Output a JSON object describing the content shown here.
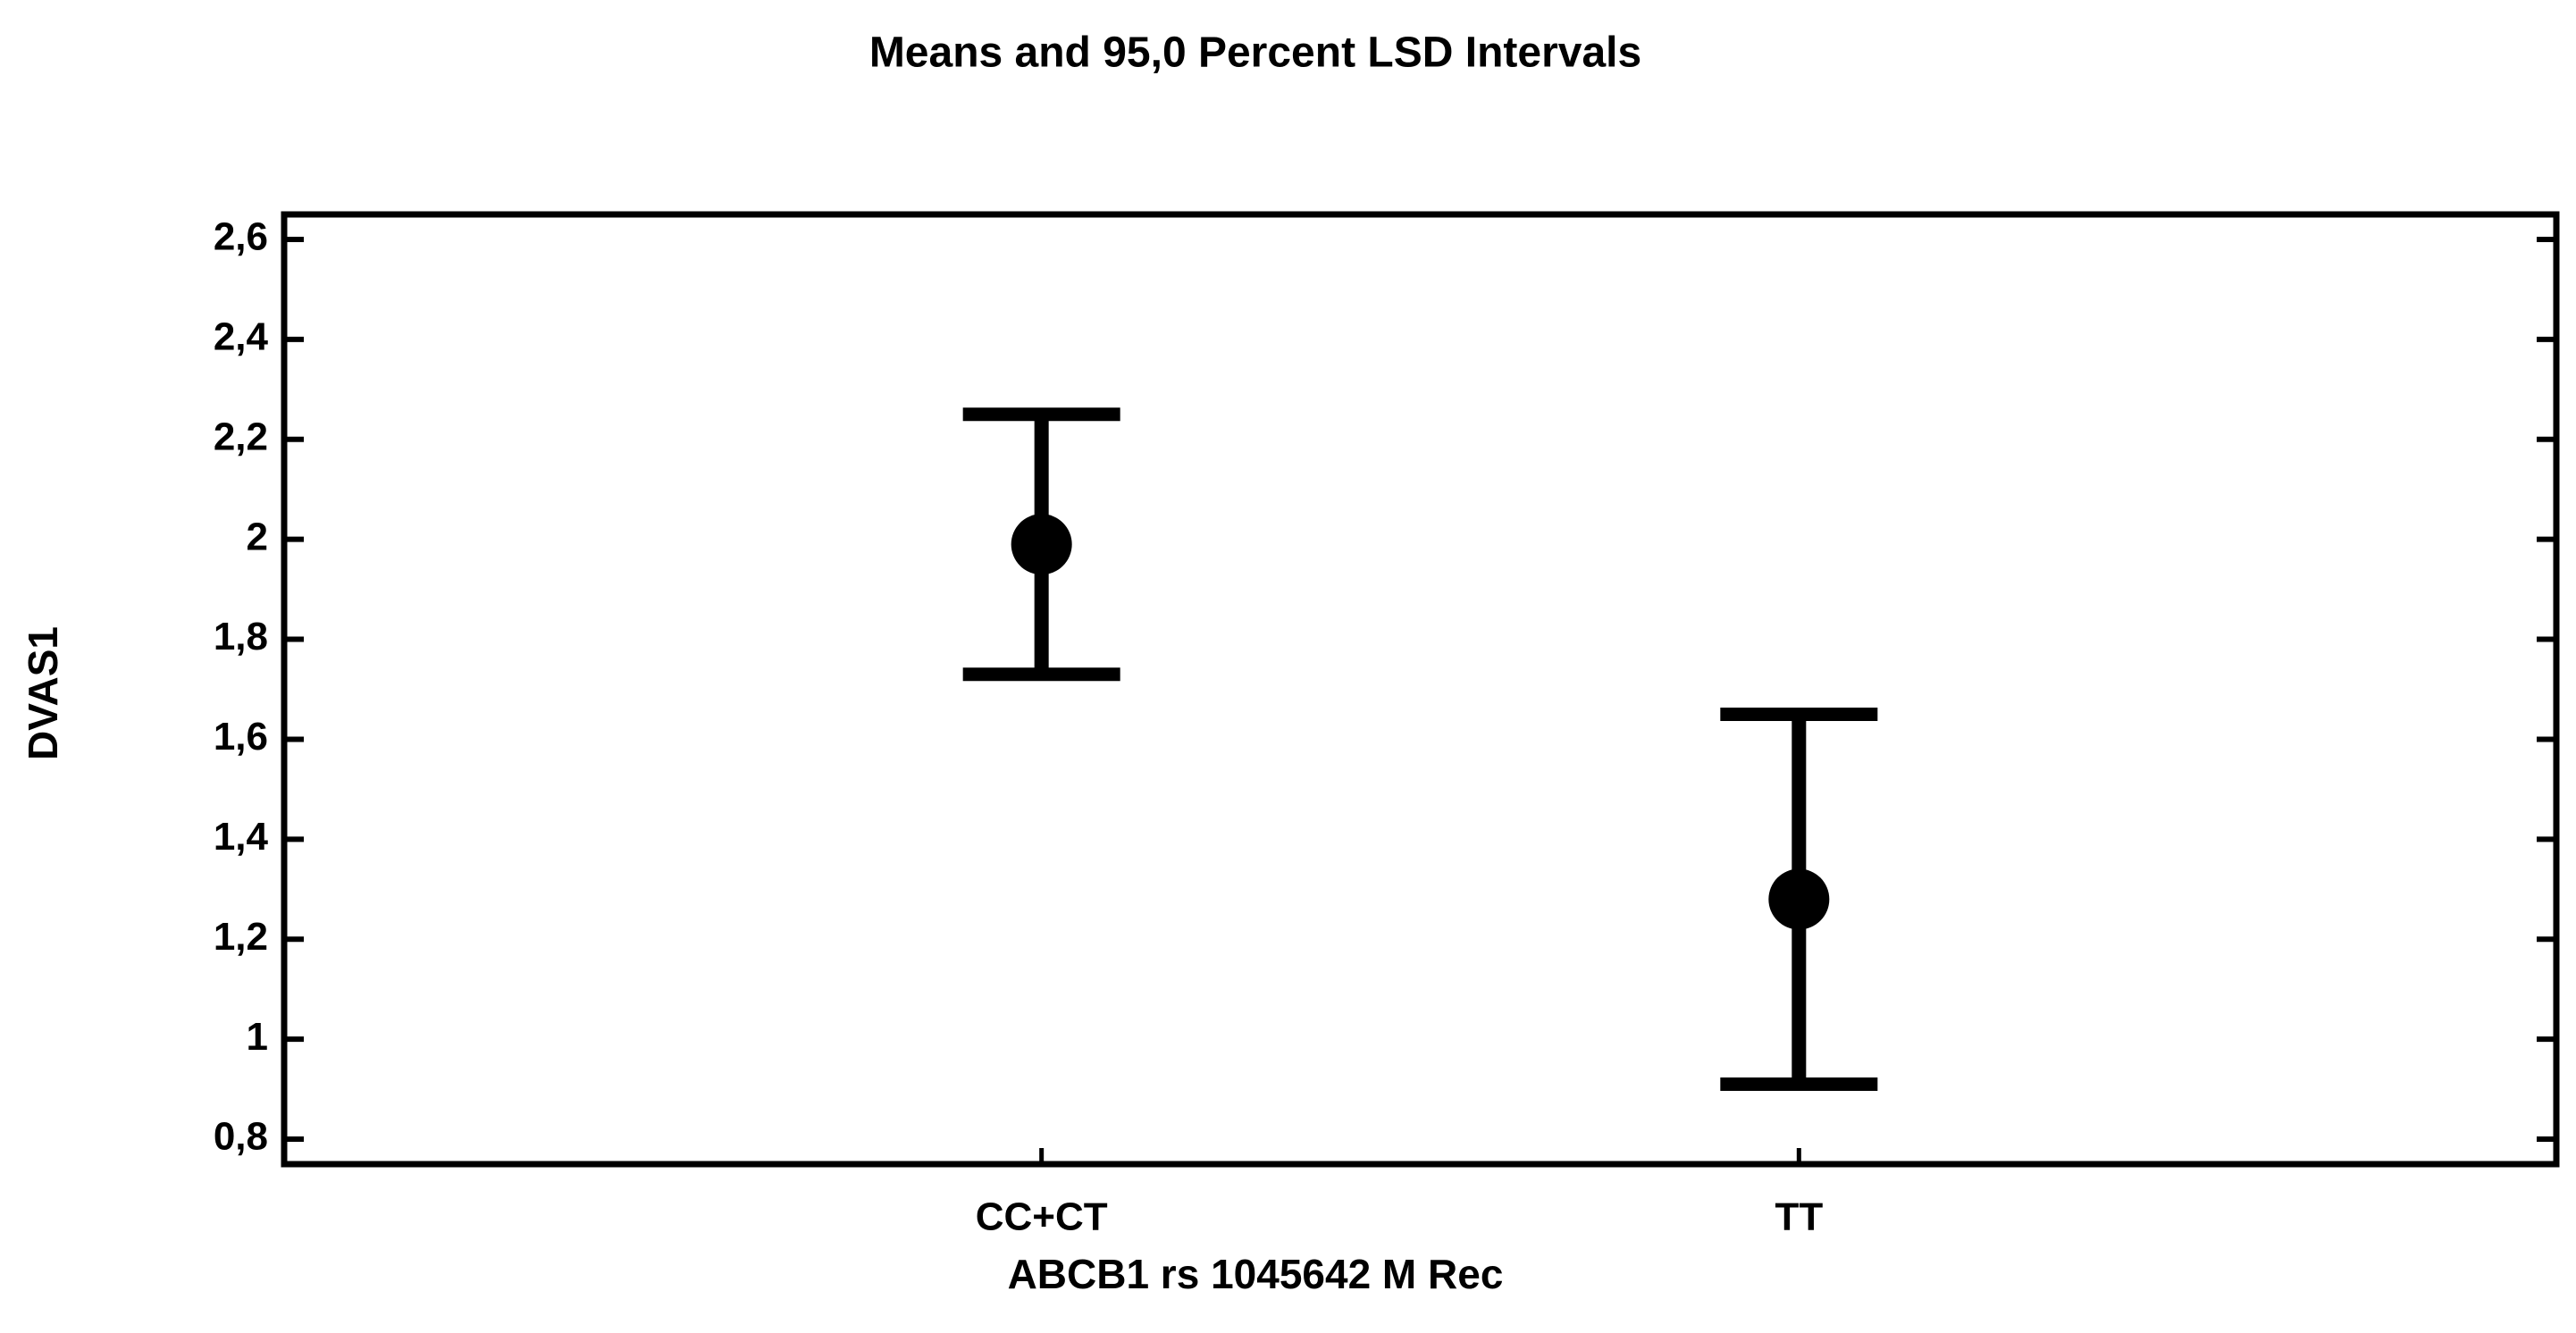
{
  "chart_data": {
    "type": "errorbar",
    "title": "Means and 95,0 Percent LSD Intervals",
    "x_label": "ABCB1 rs 1045642 M Rec",
    "y_label": "DVAS1",
    "categories": [
      "CC+CT",
      "TT"
    ],
    "values": [
      1.99,
      1.28
    ],
    "errors": [
      0.26,
      0.37
    ],
    "color": "#000000",
    "ylim": [
      0.75,
      2.65
    ],
    "yticks": [
      {
        "value": 0.8,
        "label": "0,8"
      },
      1,
      {
        "value": 1.2,
        "label": "1,2"
      },
      {
        "value": 1.4,
        "label": "1,4"
      },
      {
        "value": 1.6,
        "label": "1,6"
      },
      {
        "value": 1.8,
        "label": "1,8"
      },
      2,
      {
        "value": 2.2,
        "label": "2,2"
      },
      {
        "value": 2.4,
        "label": "2,4"
      },
      {
        "value": 2.6,
        "label": "2,6"
      }
    ],
    "grid": false
  }
}
